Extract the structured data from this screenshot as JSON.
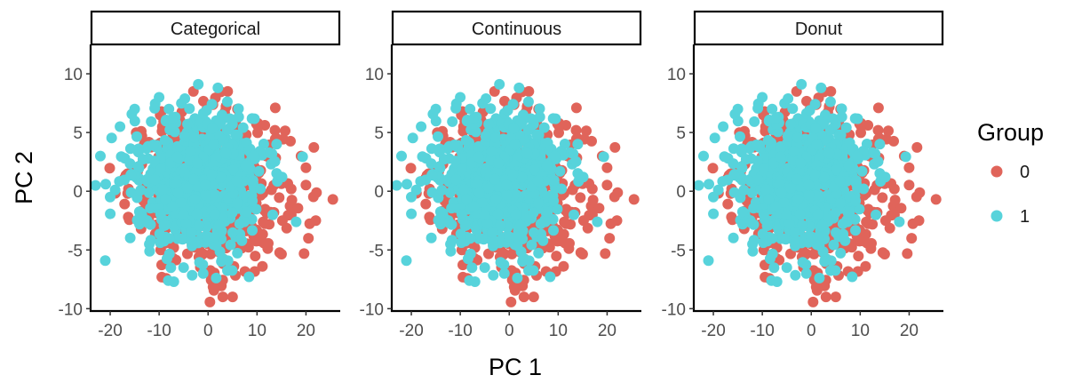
{
  "chart_data": {
    "type": "scatter",
    "facets": [
      {
        "key": "categorical",
        "label": "Categorical"
      },
      {
        "key": "continuous",
        "label": "Continuous"
      },
      {
        "key": "donut",
        "label": "Donut"
      }
    ],
    "xlabel": "PC 1",
    "ylabel": "PC 2",
    "xlim": [
      -24,
      27
    ],
    "ylim": [
      -10.2,
      12.5
    ],
    "xticks": [
      -20,
      -10,
      0,
      10,
      20
    ],
    "yticks": [
      -10,
      -5,
      0,
      5,
      10
    ],
    "grid": false,
    "legend": {
      "title": "Group",
      "position": "right",
      "entries": [
        {
          "label": "0",
          "color": "#E0645A"
        },
        {
          "label": "1",
          "color": "#57D3DB"
        }
      ]
    },
    "series": [
      {
        "name": "0",
        "color": "#E0645A",
        "center": [
          0,
          0
        ],
        "sd": [
          8,
          3.3
        ],
        "count": 550
      },
      {
        "name": "1",
        "color": "#57D3DB",
        "center": [
          -2,
          0.5
        ],
        "sd": [
          6.5,
          3
        ],
        "count": 650
      }
    ],
    "notable_points": {
      "0": [
        [
          25.5,
          -0.7
        ],
        [
          20.5,
          -4
        ],
        [
          20,
          2
        ],
        [
          19,
          3
        ],
        [
          17,
          -2
        ],
        [
          5,
          -9
        ],
        [
          3,
          -9
        ],
        [
          6,
          7
        ],
        [
          4,
          8.5
        ],
        [
          -3,
          8.5
        ],
        [
          22,
          -2.5
        ]
      ],
      "1": [
        [
          -21,
          -5.9
        ],
        [
          -23,
          0.5
        ],
        [
          -22,
          3
        ],
        [
          -20,
          -0.5
        ],
        [
          -18,
          5.5
        ],
        [
          -15,
          7
        ],
        [
          -10,
          8
        ],
        [
          -8,
          7
        ],
        [
          -2,
          9.1
        ],
        [
          2,
          8.8
        ],
        [
          -7,
          -7.7
        ],
        [
          -5,
          -6.5
        ],
        [
          -1,
          -7
        ],
        [
          -12,
          -4.5
        ],
        [
          18,
          -2.6
        ],
        [
          14,
          4
        ]
      ]
    }
  }
}
